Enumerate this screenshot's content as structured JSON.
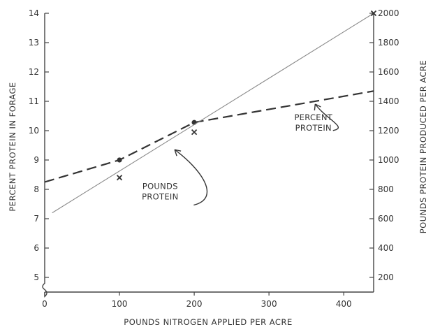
{
  "chart_data": {
    "type": "line",
    "title": "",
    "xlabel": "POUNDS NITROGEN APPLIED PER ACRE",
    "ylabel_left": "PERCENT PROTEIN IN FORAGE",
    "ylabel_right": "POUNDS PROTEIN PRODUCED PER ACRE",
    "xlim": [
      0,
      440
    ],
    "ylim_left": [
      4.5,
      14
    ],
    "ylim_right": [
      100,
      2000
    ],
    "x_ticks": [
      0,
      100,
      200,
      300,
      400
    ],
    "y_left_ticks": [
      5,
      6,
      7,
      8,
      9,
      10,
      11,
      12,
      13,
      14
    ],
    "y_right_ticks": [
      200,
      400,
      600,
      800,
      1000,
      1200,
      1400,
      1600,
      1800,
      2000
    ],
    "grid": false,
    "legend": "none",
    "series": [
      {
        "axis": "left",
        "style": "dashed",
        "line": {
          "x": [
            0,
            100,
            200,
            440
          ],
          "y": [
            8.25,
            9.0,
            10.28,
            11.35
          ]
        },
        "points": {
          "x": [
            100,
            200
          ],
          "y": [
            9.0,
            10.28
          ],
          "marker": "circle"
        }
      },
      {
        "axis": "right",
        "style": "solid",
        "line": {
          "x": [
            10,
            440
          ],
          "y": [
            640,
            2000
          ]
        },
        "points": {
          "x": [
            100,
            200,
            440
          ],
          "y": [
            880,
            1190,
            2000
          ],
          "marker": "x"
        }
      }
    ],
    "annotations": [
      {
        "lines": [
          "PERCENT",
          "PROTEIN"
        ],
        "anchor_x": 380,
        "anchor_y_right": 1220,
        "target_x": 360,
        "target_y_right": 1400
      },
      {
        "lines": [
          "POUNDS",
          "PROTEIN"
        ],
        "anchor_x": 175,
        "anchor_y_right": 750,
        "target_x": 172,
        "target_y_right": 1080
      }
    ]
  }
}
